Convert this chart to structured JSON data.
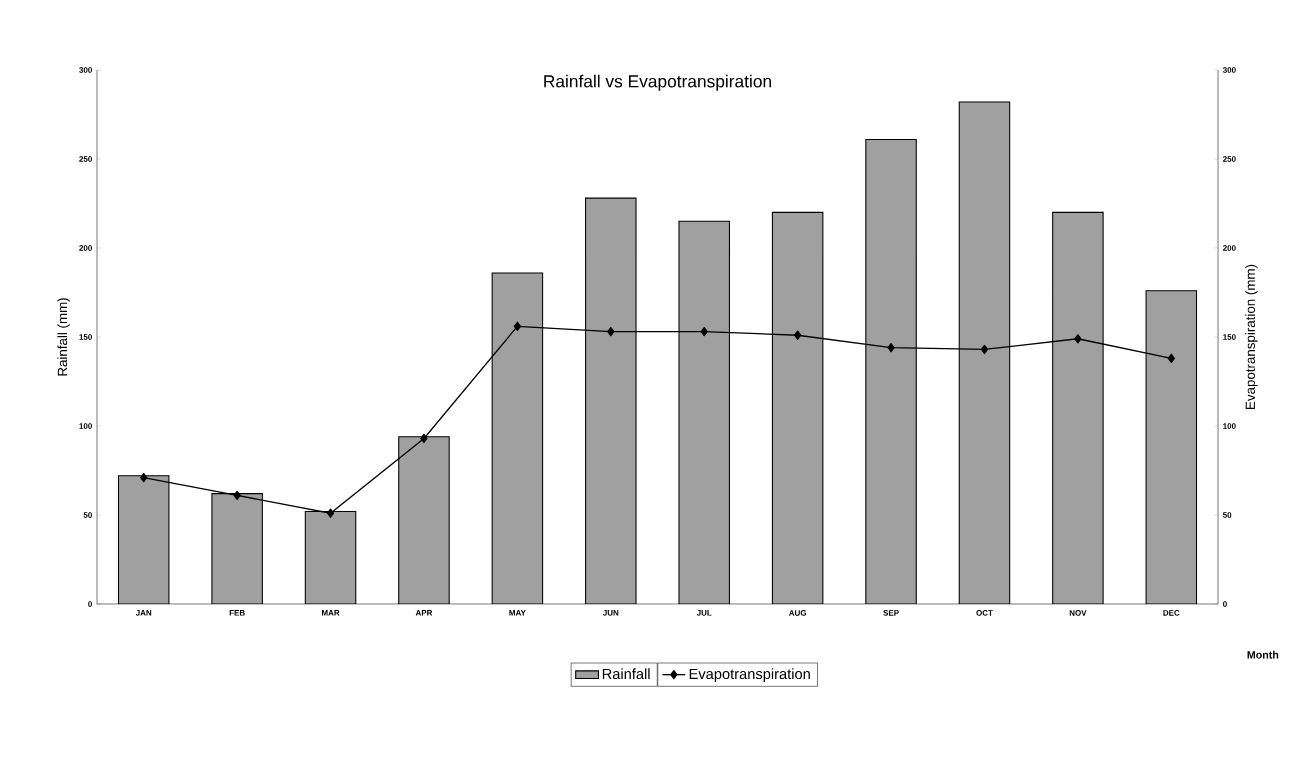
{
  "chart_data": {
    "type": "bar",
    "title": "Rainfall vs Evapotranspiration",
    "xlabel": "Month",
    "ylabel": "Rainfall (mm)",
    "y2label": "Evapotranspiration (mm)",
    "categories": [
      "JAN",
      "FEB",
      "MAR",
      "APR",
      "MAY",
      "JUN",
      "JUL",
      "AUG",
      "SEP",
      "OCT",
      "NOV",
      "DEC"
    ],
    "series": [
      {
        "name": "Rainfall",
        "color": "#a0a0a0",
        "values": [
          72,
          62,
          52,
          94,
          186,
          228,
          215,
          220,
          261,
          282,
          220,
          176
        ]
      },
      {
        "name": "Evapotranspiration",
        "type": "line",
        "axis": "y2",
        "color": "#000000",
        "marker": "diamond",
        "values": [
          71,
          61,
          51,
          93,
          156,
          153,
          153,
          151,
          144,
          143,
          149,
          138
        ]
      }
    ],
    "ylim": [
      0,
      300
    ],
    "yticks": [
      0,
      50,
      100,
      150,
      200,
      250,
      300
    ],
    "y2lim": [
      0,
      300
    ],
    "y2ticks": [
      0,
      50,
      100,
      150,
      200,
      250,
      300
    ],
    "legend": "bottom"
  }
}
